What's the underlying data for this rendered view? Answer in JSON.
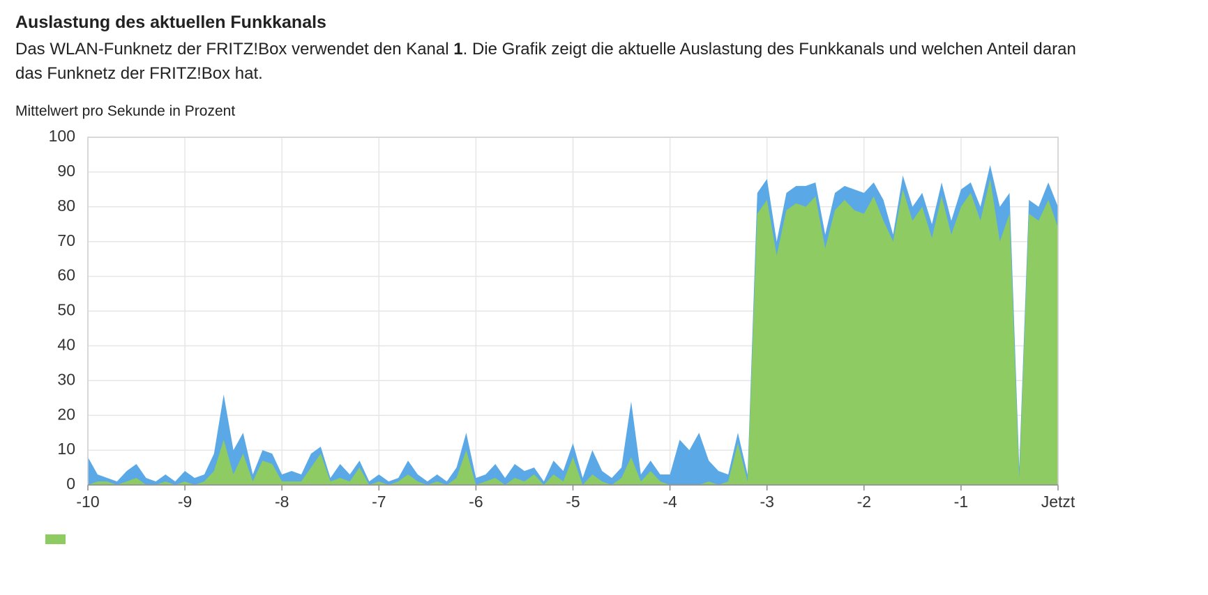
{
  "title": "Auslastung des aktuellen Funkkanals",
  "description": [
    "Das WLAN-Funknetz der FRITZ!Box verwendet den Kanal ",
    "1",
    ". Die Grafik zeigt die aktuelle Auslastung des Funkkanals und welchen Anteil daran das Funknetz der FRITZ!Box hat."
  ],
  "chart_data": {
    "type": "area",
    "y_label": "Mittelwert pro Sekunde in Prozent",
    "x": [
      -10,
      -9.9,
      -9.8,
      -9.7,
      -9.6,
      -9.5,
      -9.4,
      -9.3,
      -9.2,
      -9.1,
      -9,
      -8.9,
      -8.8,
      -8.7,
      -8.6,
      -8.5,
      -8.4,
      -8.3,
      -8.2,
      -8.1,
      -8,
      -7.9,
      -7.8,
      -7.7,
      -7.6,
      -7.5,
      -7.4,
      -7.3,
      -7.2,
      -7.1,
      -7,
      -6.9,
      -6.8,
      -6.7,
      -6.6,
      -6.5,
      -6.4,
      -6.3,
      -6.2,
      -6.1,
      -6,
      -5.9,
      -5.8,
      -5.7,
      -5.6,
      -5.5,
      -5.4,
      -5.3,
      -5.2,
      -5.1,
      -5,
      -4.9,
      -4.8,
      -4.7,
      -4.6,
      -4.5,
      -4.4,
      -4.3,
      -4.2,
      -4.1,
      -4,
      -3.9,
      -3.8,
      -3.7,
      -3.6,
      -3.5,
      -3.4,
      -3.3,
      -3.2,
      -3.1,
      -3,
      -2.9,
      -2.8,
      -2.7,
      -2.6,
      -2.5,
      -2.4,
      -2.3,
      -2.2,
      -2.1,
      -2,
      -1.9,
      -1.8,
      -1.7,
      -1.6,
      -1.5,
      -1.4,
      -1.3,
      -1.2,
      -1.1,
      -1,
      -0.9,
      -0.8,
      -0.7,
      -0.6,
      -0.5,
      -0.4,
      -0.3,
      -0.2,
      -0.1,
      0
    ],
    "series": [
      {
        "color": "#5aa9e6",
        "values": [
          8,
          3,
          2,
          1,
          4,
          6,
          2,
          1,
          3,
          1,
          4,
          2,
          3,
          9,
          26,
          10,
          15,
          3,
          10,
          9,
          3,
          4,
          3,
          9,
          11,
          2,
          6,
          3,
          7,
          1,
          3,
          1,
          2,
          7,
          3,
          1,
          3,
          1,
          5,
          15,
          2,
          3,
          6,
          2,
          6,
          4,
          5,
          1,
          7,
          4,
          12,
          2,
          10,
          4,
          2,
          5,
          24,
          3,
          7,
          3,
          3,
          13,
          10,
          15,
          7,
          4,
          3,
          15,
          3,
          84,
          88,
          70,
          84,
          86,
          86,
          87,
          72,
          84,
          86,
          85,
          84,
          87,
          82,
          72,
          89,
          80,
          84,
          75,
          87,
          76,
          85,
          87,
          80,
          92,
          80,
          84,
          5,
          82,
          80,
          87,
          80
        ]
      },
      {
        "color": "#8ecb63",
        "values": [
          0,
          1,
          1,
          0,
          1,
          2,
          0,
          0,
          1,
          0,
          1,
          0,
          1,
          4,
          13,
          3,
          9,
          1,
          7,
          6,
          1,
          1,
          1,
          5,
          9,
          1,
          2,
          1,
          5,
          0,
          1,
          0,
          1,
          3,
          1,
          0,
          1,
          0,
          2,
          10,
          0,
          1,
          2,
          0,
          2,
          1,
          3,
          0,
          3,
          1,
          8,
          0,
          3,
          1,
          0,
          2,
          8,
          1,
          4,
          1,
          0,
          0,
          0,
          0,
          1,
          0,
          1,
          12,
          1,
          78,
          82,
          66,
          79,
          81,
          80,
          83,
          68,
          79,
          82,
          79,
          78,
          83,
          76,
          70,
          85,
          76,
          80,
          71,
          83,
          72,
          80,
          84,
          76,
          88,
          70,
          78,
          2,
          78,
          76,
          82,
          74
        ]
      }
    ],
    "xlim": [
      -10,
      0
    ],
    "xticks": [
      -10,
      -9,
      -8,
      -7,
      -6,
      -5,
      -4,
      -3,
      -2,
      -1,
      {
        "value": 0,
        "label": "Jetzt"
      }
    ],
    "ylim": [
      0,
      100
    ],
    "yticks": [
      0,
      10,
      20,
      30,
      40,
      50,
      60,
      70,
      80,
      90,
      100
    ],
    "grid": true
  }
}
